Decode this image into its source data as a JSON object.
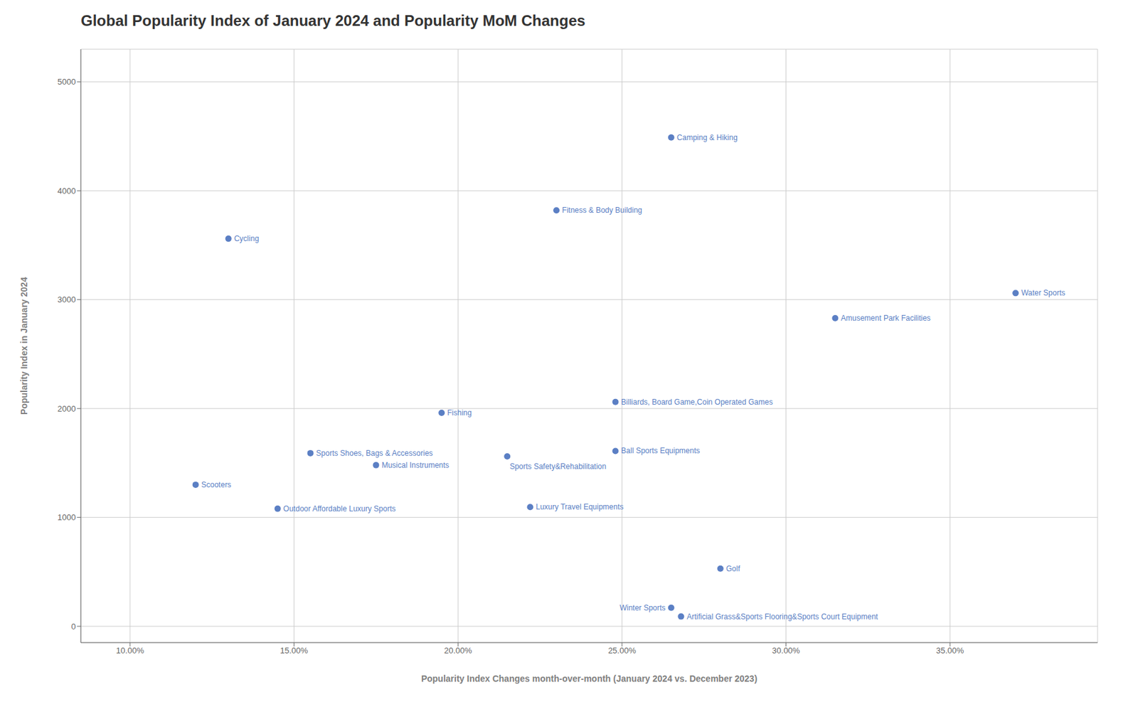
{
  "chart_data": {
    "type": "scatter",
    "title": "Global Popularity Index of January 2024 and Popularity MoM Changes",
    "xlabel": "Popularity Index Changes month-over-month (January 2024 vs. December 2023)",
    "ylabel": "Popularity Index in January 2024",
    "color": "#5b7fc4",
    "grid": true,
    "xlim": [
      0.085,
      0.395
    ],
    "ylim": [
      -150,
      5300
    ],
    "xticks": [
      {
        "value": 0.1,
        "label": "10.00%"
      },
      {
        "value": 0.15,
        "label": "15.00%"
      },
      {
        "value": 0.2,
        "label": "20.00%"
      },
      {
        "value": 0.25,
        "label": "25.00%"
      },
      {
        "value": 0.3,
        "label": "30.00%"
      },
      {
        "value": 0.35,
        "label": "35.00%"
      }
    ],
    "yticks": [
      0,
      1000,
      2000,
      3000,
      4000,
      5000
    ],
    "x": [
      0.13,
      0.12,
      0.145,
      0.155,
      0.175,
      0.195,
      0.215,
      0.222,
      0.23,
      0.248,
      0.248,
      0.265,
      0.265,
      0.268,
      0.28,
      0.315,
      0.37
    ],
    "values": [
      3560,
      1300,
      1080,
      1590,
      1480,
      1960,
      1560,
      1095,
      3820,
      2060,
      1610,
      4490,
      170,
      90,
      530,
      2830,
      3060
    ],
    "annotations": [
      "Cycling",
      "Scooters",
      "Outdoor Affordable Luxury Sports",
      "Sports Shoes, Bags & Accessories",
      "Musical Instruments",
      "Fishing",
      "Sports Safety&Rehabilitation",
      "Luxury Travel Equipments",
      "Fitness & Body Building",
      "Billiards, Board Game,Coin Operated Games",
      "Ball Sports Equipments",
      "Camping & Hiking",
      "Winter Sports",
      "Artificial Grass&Sports Flooring&Sports Court Equipment",
      "Golf",
      "Amusement Park Facilities",
      "Water Sports"
    ]
  }
}
